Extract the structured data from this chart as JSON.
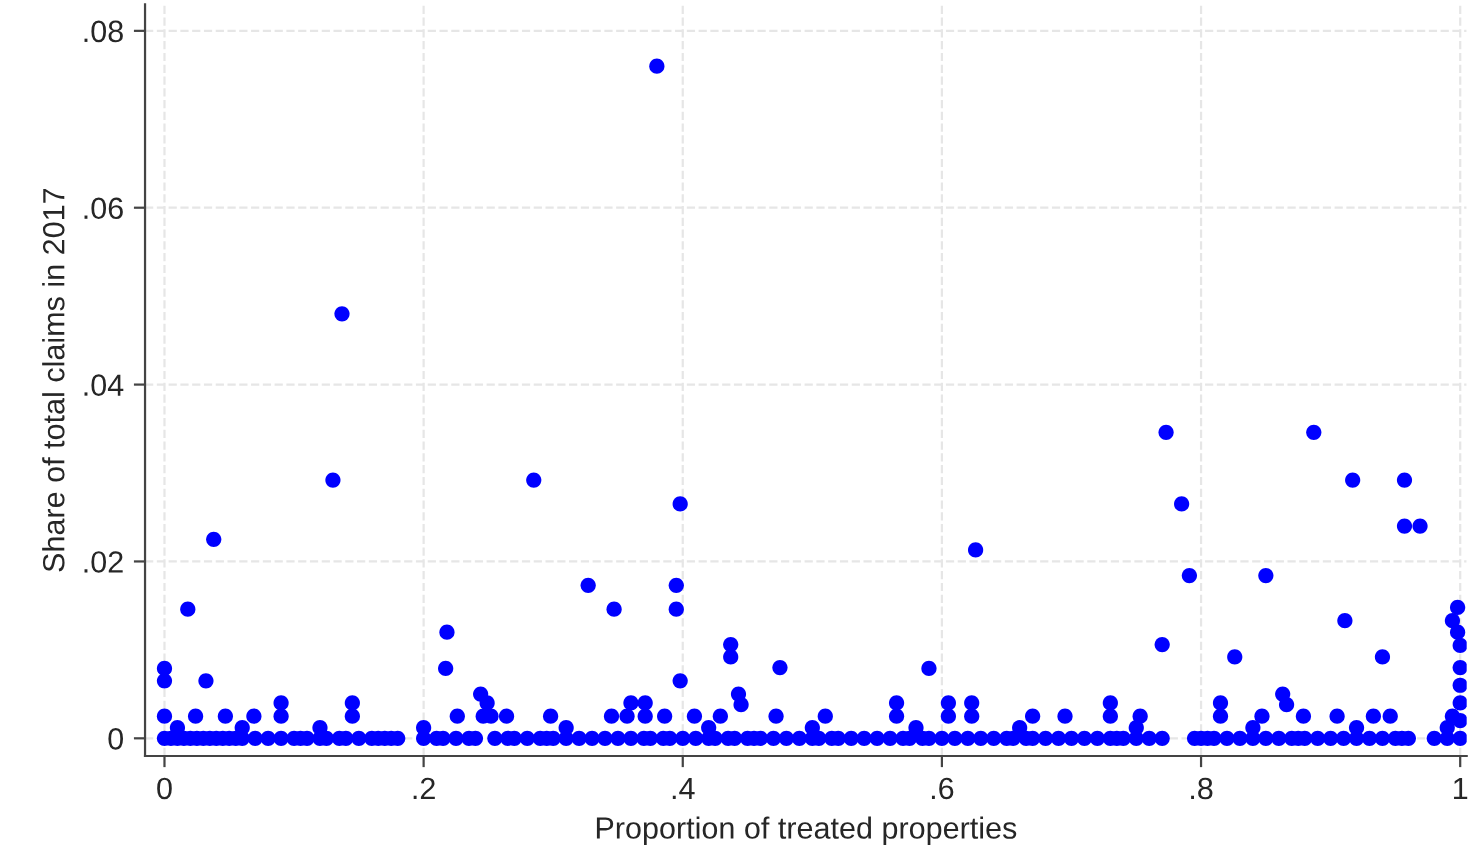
{
  "chart_data": {
    "type": "scatter",
    "xlabel": "Proportion of treated properties",
    "ylabel": "Share of total claims in 2017",
    "xlim": [
      -0.015,
      1.005
    ],
    "ylim": [
      -0.002,
      0.083
    ],
    "xticks": [
      0,
      {
        "value": 0.2,
        "label": ".2"
      },
      {
        "value": 0.4,
        "label": ".4"
      },
      {
        "value": 0.6,
        "label": ".6"
      },
      {
        "value": 0.8,
        "label": ".8"
      },
      1
    ],
    "yticks": [
      0,
      {
        "value": 0.02,
        "label": ".02"
      },
      {
        "value": 0.04,
        "label": ".04"
      },
      {
        "value": 0.06,
        "label": ".06"
      },
      {
        "value": 0.08,
        "label": ".08"
      }
    ],
    "grid": true,
    "marker": "circle",
    "legend": false,
    "series": [
      {
        "color": "#0000ff",
        "x": [
          0.38,
          0.137,
          0.13,
          0.285,
          0.038,
          0.018,
          0.032,
          0,
          0,
          0.218,
          0.217,
          0.327,
          0.347,
          0.398,
          0.395,
          0.395,
          0.398,
          0.437,
          0.437,
          0.443,
          0.445,
          0.475,
          0.773,
          0.887,
          0.917,
          0.957,
          0.957,
          0.969,
          0.785,
          0.791,
          0.85,
          0.626,
          0.77,
          0.826,
          0.911,
          0.94,
          0.59,
          0.998,
          0.994,
          0.998,
          0.863,
          0.866,
          0,
          0.024,
          0.047,
          0.069,
          0.09,
          0.145,
          0.226,
          0.246,
          0.252,
          0.264,
          0.298,
          0.345,
          0.357,
          0.371,
          0.386,
          0.409,
          0.429,
          0.472,
          0.51,
          0.565,
          0.605,
          0.623,
          0.67,
          0.695,
          0.73,
          0.753,
          0.815,
          0.847,
          0.879,
          0.905,
          0.933,
          0.946,
          0.994,
          0.09,
          0.145,
          0.249,
          0.36,
          0.371,
          0.565,
          0.605,
          0.623,
          0.73,
          0.815,
          0.244,
          0.01,
          0.06,
          0.12,
          0.2,
          0.31,
          0.42,
          0.5,
          0.58,
          0.66,
          0.75,
          0.84,
          0.92,
          0.99,
          1,
          1,
          1,
          1,
          1,
          0,
          0.005,
          0.01,
          0.015,
          0.02,
          0.025,
          0.03,
          0.035,
          0.04,
          0.045,
          0.05,
          0.055,
          0.06,
          0.07,
          0.08,
          0.09,
          0.1,
          0.105,
          0.11,
          0.12,
          0.125,
          0.135,
          0.14,
          0.15,
          0.16,
          0.165,
          0.17,
          0.175,
          0.18,
          0.2,
          0.21,
          0.215,
          0.225,
          0.235,
          0.24,
          0.255,
          0.265,
          0.27,
          0.28,
          0.29,
          0.295,
          0.3,
          0.31,
          0.32,
          0.33,
          0.34,
          0.35,
          0.36,
          0.37,
          0.375,
          0.385,
          0.39,
          0.4,
          0.41,
          0.42,
          0.425,
          0.435,
          0.44,
          0.45,
          0.455,
          0.46,
          0.47,
          0.48,
          0.49,
          0.5,
          0.505,
          0.515,
          0.52,
          0.53,
          0.54,
          0.55,
          0.56,
          0.57,
          0.575,
          0.585,
          0.59,
          0.6,
          0.61,
          0.62,
          0.63,
          0.64,
          0.65,
          0.655,
          0.665,
          0.67,
          0.68,
          0.69,
          0.7,
          0.71,
          0.72,
          0.73,
          0.735,
          0.74,
          0.75,
          0.76,
          0.77,
          0.795,
          0.8,
          0.805,
          0.81,
          0.82,
          0.83,
          0.84,
          0.85,
          0.86,
          0.87,
          0.875,
          0.88,
          0.89,
          0.9,
          0.91,
          0.92,
          0.93,
          0.94,
          0.95,
          0.955,
          0.96,
          0.98,
          0.99,
          1
        ],
        "values": [
          0.076,
          0.048,
          0.0292,
          0.0292,
          0.0225,
          0.0146,
          0.0065,
          0.0079,
          0.0065,
          0.012,
          0.0079,
          0.0173,
          0.0146,
          0.0265,
          0.0173,
          0.0146,
          0.0065,
          0.0106,
          0.0092,
          0.005,
          0.0038,
          0.008,
          0.0346,
          0.0346,
          0.0292,
          0.0292,
          0.024,
          0.024,
          0.0265,
          0.0184,
          0.0184,
          0.0213,
          0.0106,
          0.0092,
          0.0133,
          0.0092,
          0.0079,
          0.0148,
          0.0133,
          0.012,
          0.005,
          0.0038,
          0.0025,
          0.0025,
          0.0025,
          0.0025,
          0.0025,
          0.0025,
          0.0025,
          0.0025,
          0.0025,
          0.0025,
          0.0025,
          0.0025,
          0.0025,
          0.0025,
          0.0025,
          0.0025,
          0.0025,
          0.0025,
          0.0025,
          0.0025,
          0.0025,
          0.0025,
          0.0025,
          0.0025,
          0.0025,
          0.0025,
          0.0025,
          0.0025,
          0.0025,
          0.0025,
          0.0025,
          0.0025,
          0.0025,
          0.004,
          0.004,
          0.004,
          0.004,
          0.004,
          0.004,
          0.004,
          0.004,
          0.004,
          0.004,
          0.005,
          0.0012,
          0.0012,
          0.0012,
          0.0012,
          0.0012,
          0.0012,
          0.0012,
          0.0012,
          0.0012,
          0.0012,
          0.0012,
          0.0012,
          0.0012,
          0.002,
          0.004,
          0.006,
          0.008,
          0.0105,
          0,
          0,
          0,
          0,
          0,
          0,
          0,
          0,
          0,
          0,
          0,
          0,
          0,
          0,
          0,
          0,
          0,
          0,
          0,
          0,
          0,
          0,
          0,
          0,
          0,
          0,
          0,
          0,
          0,
          0,
          0,
          0,
          0,
          0,
          0,
          0,
          0,
          0,
          0,
          0,
          0,
          0,
          0,
          0,
          0,
          0,
          0,
          0,
          0,
          0,
          0,
          0,
          0,
          0,
          0,
          0,
          0,
          0,
          0,
          0,
          0,
          0,
          0,
          0,
          0,
          0,
          0,
          0,
          0,
          0,
          0,
          0,
          0,
          0,
          0,
          0,
          0,
          0,
          0,
          0,
          0,
          0,
          0,
          0,
          0,
          0,
          0,
          0,
          0,
          0,
          0,
          0,
          0,
          0,
          0,
          0,
          0,
          0,
          0,
          0,
          0,
          0,
          0,
          0,
          0,
          0,
          0,
          0,
          0,
          0,
          0,
          0,
          0,
          0,
          0,
          0,
          0,
          0,
          0,
          0
        ]
      }
    ]
  }
}
